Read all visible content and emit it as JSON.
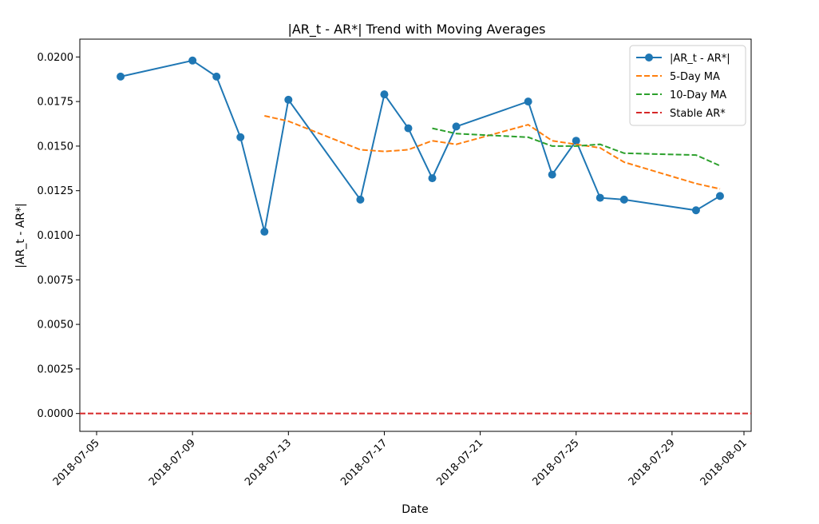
{
  "chart_data": {
    "type": "line",
    "title": "|AR_t - AR*| Trend with Moving Averages",
    "xlabel": "Date",
    "ylabel": "|AR_t - AR*|",
    "x_ticks": [
      "2018-07-05",
      "2018-07-09",
      "2018-07-13",
      "2018-07-17",
      "2018-07-21",
      "2018-07-25",
      "2018-07-29",
      "2018-08-01"
    ],
    "y_ticks": [
      "0.0000",
      "0.0025",
      "0.0050",
      "0.0075",
      "0.0100",
      "0.0125",
      "0.0150",
      "0.0175",
      "0.0200"
    ],
    "xlim": [
      "2018-07-04",
      "2018-08-01"
    ],
    "ylim": [
      -0.001,
      0.021
    ],
    "grid": false,
    "legend_position": "top-right",
    "series": [
      {
        "name": "|AR_t - AR*|",
        "style": "solid-markers",
        "color": "#1f77b4",
        "x": [
          "2018-07-06",
          "2018-07-09",
          "2018-07-10",
          "2018-07-11",
          "2018-07-12",
          "2018-07-13",
          "2018-07-16",
          "2018-07-17",
          "2018-07-18",
          "2018-07-19",
          "2018-07-20",
          "2018-07-23",
          "2018-07-24",
          "2018-07-25",
          "2018-07-26",
          "2018-07-27",
          "2018-07-30",
          "2018-07-31"
        ],
        "y": [
          0.0189,
          0.0198,
          0.0189,
          0.0155,
          0.0102,
          0.0176,
          0.012,
          0.0179,
          0.016,
          0.0132,
          0.0161,
          0.0175,
          0.0134,
          0.0153,
          0.0121,
          0.012,
          0.0114,
          0.0122
        ]
      },
      {
        "name": "5-Day MA",
        "style": "dashed",
        "color": "#ff7f0e",
        "x": [
          "2018-07-12",
          "2018-07-13",
          "2018-07-16",
          "2018-07-17",
          "2018-07-18",
          "2018-07-19",
          "2018-07-20",
          "2018-07-23",
          "2018-07-24",
          "2018-07-25",
          "2018-07-26",
          "2018-07-27",
          "2018-07-30",
          "2018-07-31"
        ],
        "y": [
          0.0167,
          0.0164,
          0.0148,
          0.0147,
          0.0148,
          0.0153,
          0.0151,
          0.0162,
          0.0153,
          0.0151,
          0.0149,
          0.0141,
          0.0129,
          0.0126
        ]
      },
      {
        "name": "10-Day MA",
        "style": "dashed",
        "color": "#2ca02c",
        "x": [
          "2018-07-19",
          "2018-07-20",
          "2018-07-23",
          "2018-07-24",
          "2018-07-25",
          "2018-07-26",
          "2018-07-27",
          "2018-07-30",
          "2018-07-31"
        ],
        "y": [
          0.016,
          0.0157,
          0.0155,
          0.015,
          0.015,
          0.0151,
          0.0146,
          0.0145,
          0.0139
        ]
      },
      {
        "name": "Stable AR*",
        "style": "dashed-hline",
        "color": "#d62728",
        "value": 0.0
      }
    ]
  }
}
